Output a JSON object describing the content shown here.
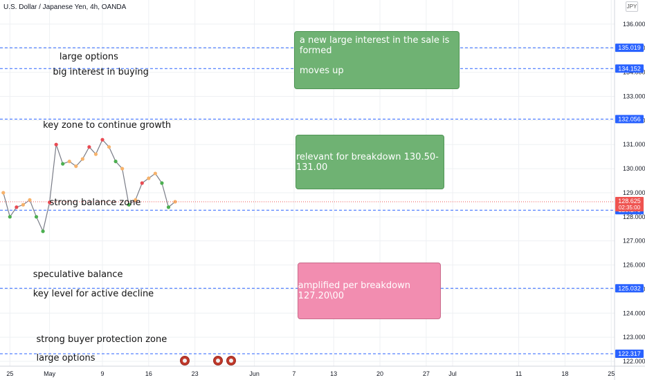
{
  "chart_title": "U.S. Dollar / Japanese Yen, 4h, OANDA",
  "currency": "JPY",
  "chart_data": {
    "type": "line",
    "title": "U.S. Dollar / Japanese Yen, 4h, OANDA",
    "y_axis_side": "right",
    "ylim": [
      121.8,
      137.0
    ],
    "y_ticks": [
      "136.000",
      "135.000",
      "134.000",
      "133.000",
      "132.000",
      "131.000",
      "130.000",
      "129.000",
      "128.000",
      "127.000",
      "126.000",
      "125.000",
      "124.000",
      "123.000",
      "122.000"
    ],
    "x_ticks": [
      "25",
      "May",
      "9",
      "16",
      "23",
      "Jun",
      "7",
      "13",
      "20",
      "27",
      "Jul",
      "11",
      "18",
      "25"
    ],
    "x_tick_days": [
      -6,
      0,
      8,
      15,
      22,
      31,
      37,
      43,
      50,
      57,
      61,
      71,
      78,
      85
    ],
    "x_domain_days": [
      -7.5,
      85.5
    ],
    "grid": true,
    "price_path": {
      "name": "",
      "days": [
        -7,
        -6,
        -5,
        -4,
        -3,
        -2,
        -1,
        0,
        1,
        2,
        3,
        4,
        5,
        6,
        7,
        8,
        9,
        10,
        11,
        12,
        13,
        14,
        15,
        16,
        17,
        18,
        19
      ],
      "values": [
        129.0,
        128.0,
        128.4,
        128.5,
        128.7,
        128.0,
        127.4,
        128.6,
        131.0,
        130.2,
        130.3,
        130.1,
        130.4,
        130.9,
        130.6,
        131.2,
        130.9,
        130.3,
        130.0,
        128.5,
        128.7,
        129.4,
        129.6,
        129.8,
        129.4,
        128.4,
        128.625
      ]
    },
    "marker_colors": {
      "up": "#e94b53",
      "down": "#4caf50",
      "neutral": "#f6b26b"
    },
    "horizontal_levels": [
      {
        "value": 135.019,
        "label": "135.019"
      },
      {
        "value": 134.152,
        "label": "134.152"
      },
      {
        "value": 132.056,
        "label": "132.056"
      },
      {
        "value": 128.275,
        "label": "128.275"
      },
      {
        "value": 125.032,
        "label": "125.032"
      },
      {
        "value": 122.317,
        "label": "122.317"
      }
    ],
    "current_price": {
      "value": 128.625,
      "label": "128.625",
      "countdown": "02:35:00",
      "color": "#ef5350"
    },
    "level_color": "#2962ff",
    "annotations": [
      {
        "text": "large options",
        "value": 134.6,
        "day": 1.5
      },
      {
        "text": "big interest in buying",
        "value": 133.95,
        "day": 0.5
      },
      {
        "text": "key zone to continue growth",
        "value": 131.75,
        "day": -1.0
      },
      {
        "text": "strong balance zone",
        "value": 128.55,
        "day": 0.0
      },
      {
        "text": "speculative balance",
        "value": 125.55,
        "day": -2.5
      },
      {
        "text": "key level for active decline",
        "value": 124.75,
        "day": -2.5
      },
      {
        "text": "strong buyer protection zone",
        "value": 122.85,
        "day": -2.0
      },
      {
        "text": "large options",
        "value": 122.1,
        "day": -2.0
      }
    ],
    "boxes": [
      {
        "color": "green",
        "lines": [
          "a new large interest in the sale is formed",
          "moves up"
        ],
        "day_from": 37.0,
        "day_to": 62.0,
        "value_top": 135.7,
        "value_bottom": 133.3
      },
      {
        "color": "green",
        "lines": [
          "relevant for breakdown 130.50-131.00"
        ],
        "day_from": 37.2,
        "day_to": 59.5,
        "value_top": 131.4,
        "value_bottom": 129.2
      },
      {
        "color": "pink",
        "lines": [
          "amplified per breakdown 127.20\\00"
        ],
        "day_from": 37.5,
        "day_to": 59.0,
        "value_top": 126.1,
        "value_bottom": 123.8
      }
    ],
    "event_markers": [
      20.5,
      25.5,
      27.5
    ]
  }
}
